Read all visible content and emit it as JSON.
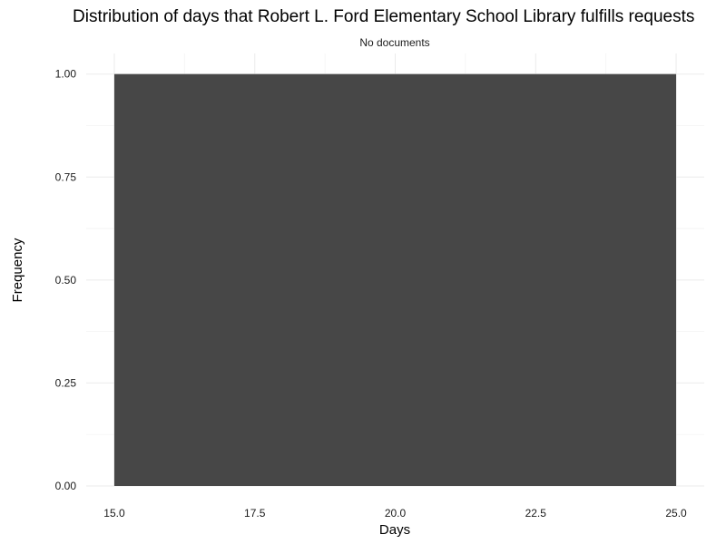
{
  "chart_data": {
    "type": "bar",
    "title": "Distribution of days that Robert L. Ford Elementary School Library fulfills requests",
    "subtitle": "No documents",
    "xlabel": "Days",
    "ylabel": "Frequency",
    "xlim": [
      14.5,
      25.5
    ],
    "ylim": [
      0,
      1.05
    ],
    "x_ticks": [
      15.0,
      17.5,
      20.0,
      22.5,
      25.0
    ],
    "x_tick_labels": [
      "15.0",
      "17.5",
      "20.0",
      "22.5",
      "25.0"
    ],
    "y_ticks": [
      0.0,
      0.25,
      0.5,
      0.75,
      1.0
    ],
    "y_tick_labels": [
      "0.00",
      "0.25",
      "0.50",
      "0.75",
      "1.00"
    ],
    "bars": [
      {
        "x_start": 15.0,
        "x_end": 25.0,
        "value": 1.0
      }
    ],
    "grid": true,
    "bar_color": "#474747"
  }
}
